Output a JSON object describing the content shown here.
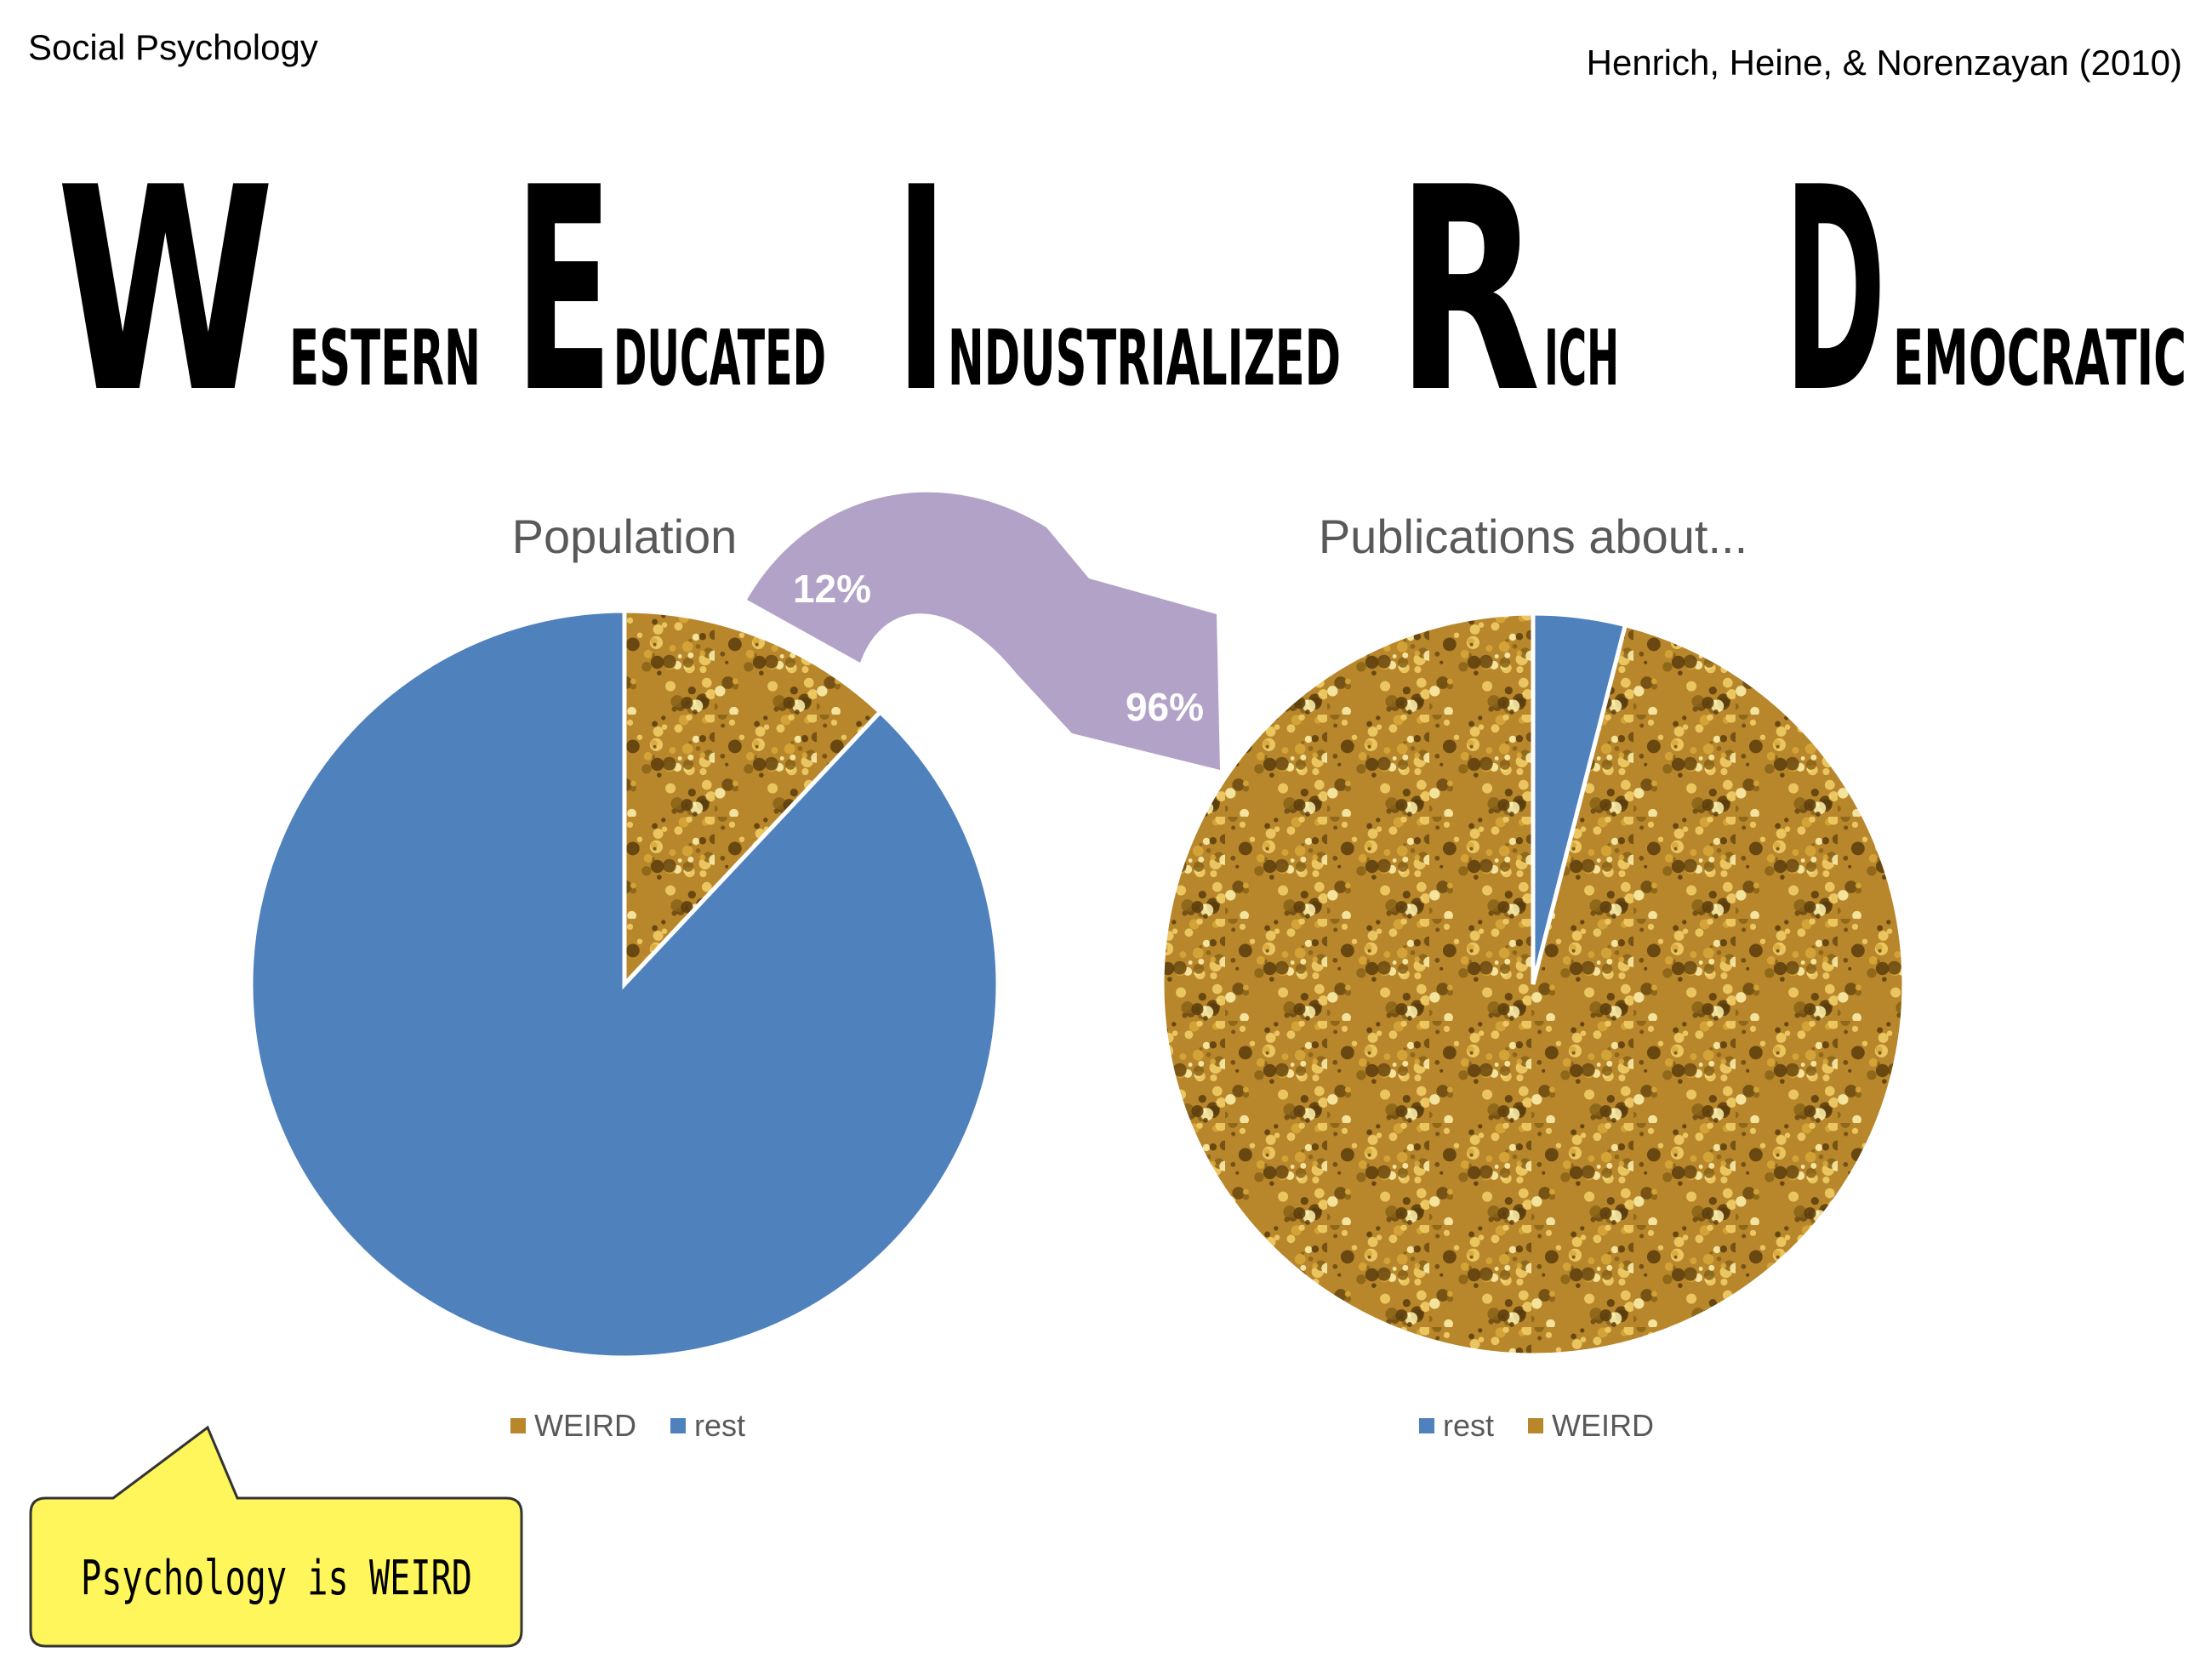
{
  "header": {
    "course": "Social Psychology",
    "citation": "Henrich, Heine, & Norenzayan (2010)"
  },
  "acronym": [
    {
      "initial": "W",
      "rest": "ESTERN"
    },
    {
      "initial": "E",
      "rest": "DUCATED"
    },
    {
      "initial": "I",
      "rest": "NDUSTRIALIZED"
    },
    {
      "initial": "R",
      "rest": "ICH"
    },
    {
      "initial": "D",
      "rest": "EMOCRATIC"
    }
  ],
  "callout": "Psychology is WEIRD",
  "chart_data": [
    {
      "type": "pie",
      "title": "Population",
      "categories": [
        "WEIRD",
        "rest"
      ],
      "values": [
        12,
        88
      ],
      "value_labels": [
        "12%",
        null
      ],
      "colors": [
        "#b8862b",
        "#4f81bd"
      ]
    },
    {
      "type": "pie",
      "title": "Publications about...",
      "categories": [
        "rest",
        "WEIRD"
      ],
      "values": [
        4,
        96
      ],
      "value_labels": [
        null,
        "96%"
      ],
      "colors": [
        "#4f81bd",
        "#b8862b"
      ]
    }
  ]
}
